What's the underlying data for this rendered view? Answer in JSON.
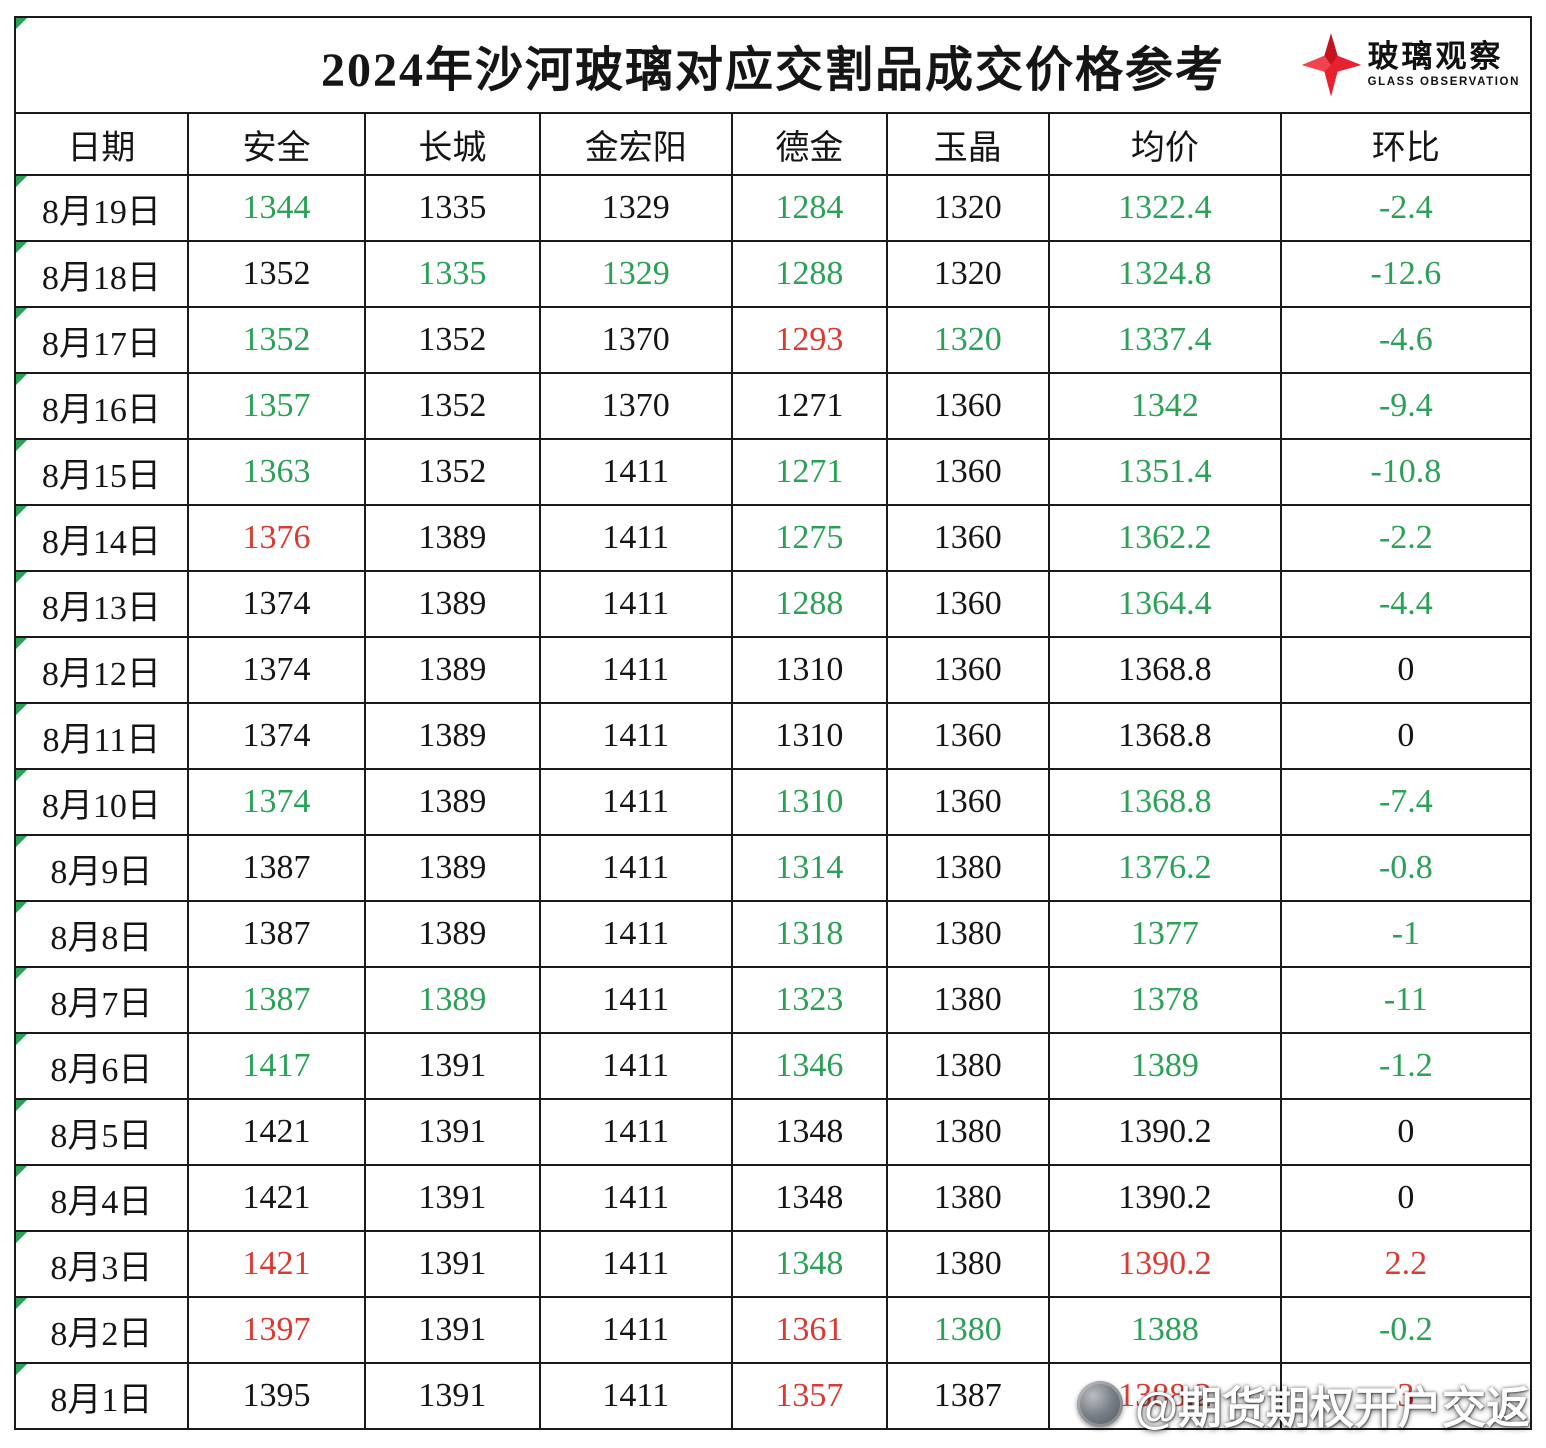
{
  "title": "2024年沙河玻璃对应交割品成交价格参考",
  "logo": {
    "name": "玻璃观察",
    "subtitle": "GLASS OBSERVATION"
  },
  "watermark": {
    "text": "@期货期权开户交返"
  },
  "colors": {
    "green": "#2ba157",
    "red": "#d93a32",
    "black": "#151515"
  },
  "table": {
    "headers": [
      "日期",
      "安全",
      "长城",
      "金宏阳",
      "德金",
      "玉晶",
      "均价",
      "环比"
    ],
    "col_widths": [
      "11.4%",
      "11.7%",
      "11.5%",
      "12.7%",
      "10.2%",
      "10.7%",
      "15.3%",
      "16.5%"
    ],
    "rows": [
      {
        "date": "8月19日",
        "values": [
          "1344",
          "1335",
          "1329",
          "1284",
          "1320",
          "1322.4",
          "-2.4"
        ],
        "colors": [
          "green",
          "black",
          "black",
          "green",
          "black",
          "green",
          "green"
        ]
      },
      {
        "date": "8月18日",
        "values": [
          "1352",
          "1335",
          "1329",
          "1288",
          "1320",
          "1324.8",
          "-12.6"
        ],
        "colors": [
          "black",
          "green",
          "green",
          "green",
          "black",
          "green",
          "green"
        ]
      },
      {
        "date": "8月17日",
        "values": [
          "1352",
          "1352",
          "1370",
          "1293",
          "1320",
          "1337.4",
          "-4.6"
        ],
        "colors": [
          "green",
          "black",
          "black",
          "red",
          "green",
          "green",
          "green"
        ]
      },
      {
        "date": "8月16日",
        "values": [
          "1357",
          "1352",
          "1370",
          "1271",
          "1360",
          "1342",
          "-9.4"
        ],
        "colors": [
          "green",
          "black",
          "black",
          "black",
          "black",
          "green",
          "green"
        ]
      },
      {
        "date": "8月15日",
        "values": [
          "1363",
          "1352",
          "1411",
          "1271",
          "1360",
          "1351.4",
          "-10.8"
        ],
        "colors": [
          "green",
          "black",
          "black",
          "green",
          "black",
          "green",
          "green"
        ]
      },
      {
        "date": "8月14日",
        "values": [
          "1376",
          "1389",
          "1411",
          "1275",
          "1360",
          "1362.2",
          "-2.2"
        ],
        "colors": [
          "red",
          "black",
          "black",
          "green",
          "black",
          "green",
          "green"
        ]
      },
      {
        "date": "8月13日",
        "values": [
          "1374",
          "1389",
          "1411",
          "1288",
          "1360",
          "1364.4",
          "-4.4"
        ],
        "colors": [
          "black",
          "black",
          "black",
          "green",
          "black",
          "green",
          "green"
        ]
      },
      {
        "date": "8月12日",
        "values": [
          "1374",
          "1389",
          "1411",
          "1310",
          "1360",
          "1368.8",
          "0"
        ],
        "colors": [
          "black",
          "black",
          "black",
          "black",
          "black",
          "black",
          "black"
        ]
      },
      {
        "date": "8月11日",
        "values": [
          "1374",
          "1389",
          "1411",
          "1310",
          "1360",
          "1368.8",
          "0"
        ],
        "colors": [
          "black",
          "black",
          "black",
          "black",
          "black",
          "black",
          "black"
        ]
      },
      {
        "date": "8月10日",
        "values": [
          "1374",
          "1389",
          "1411",
          "1310",
          "1360",
          "1368.8",
          "-7.4"
        ],
        "colors": [
          "green",
          "black",
          "black",
          "green",
          "black",
          "green",
          "green"
        ]
      },
      {
        "date": "8月9日",
        "values": [
          "1387",
          "1389",
          "1411",
          "1314",
          "1380",
          "1376.2",
          "-0.8"
        ],
        "colors": [
          "black",
          "black",
          "black",
          "green",
          "black",
          "green",
          "green"
        ]
      },
      {
        "date": "8月8日",
        "values": [
          "1387",
          "1389",
          "1411",
          "1318",
          "1380",
          "1377",
          "-1"
        ],
        "colors": [
          "black",
          "black",
          "black",
          "green",
          "black",
          "green",
          "green"
        ]
      },
      {
        "date": "8月7日",
        "values": [
          "1387",
          "1389",
          "1411",
          "1323",
          "1380",
          "1378",
          "-11"
        ],
        "colors": [
          "green",
          "green",
          "black",
          "green",
          "black",
          "green",
          "green"
        ]
      },
      {
        "date": "8月6日",
        "values": [
          "1417",
          "1391",
          "1411",
          "1346",
          "1380",
          "1389",
          "-1.2"
        ],
        "colors": [
          "green",
          "black",
          "black",
          "green",
          "black",
          "green",
          "green"
        ]
      },
      {
        "date": "8月5日",
        "values": [
          "1421",
          "1391",
          "1411",
          "1348",
          "1380",
          "1390.2",
          "0"
        ],
        "colors": [
          "black",
          "black",
          "black",
          "black",
          "black",
          "black",
          "black"
        ]
      },
      {
        "date": "8月4日",
        "values": [
          "1421",
          "1391",
          "1411",
          "1348",
          "1380",
          "1390.2",
          "0"
        ],
        "colors": [
          "black",
          "black",
          "black",
          "black",
          "black",
          "black",
          "black"
        ]
      },
      {
        "date": "8月3日",
        "values": [
          "1421",
          "1391",
          "1411",
          "1348",
          "1380",
          "1390.2",
          "2.2"
        ],
        "colors": [
          "red",
          "black",
          "black",
          "green",
          "black",
          "red",
          "red"
        ]
      },
      {
        "date": "8月2日",
        "values": [
          "1397",
          "1391",
          "1411",
          "1361",
          "1380",
          "1388",
          "-0.2"
        ],
        "colors": [
          "red",
          "black",
          "black",
          "red",
          "green",
          "green",
          "green"
        ]
      },
      {
        "date": "8月1日",
        "values": [
          "1395",
          "1391",
          "1411",
          "1357",
          "1387",
          "1388.2",
          "3"
        ],
        "colors": [
          "black",
          "black",
          "black",
          "red",
          "black",
          "red",
          "red"
        ]
      }
    ]
  }
}
